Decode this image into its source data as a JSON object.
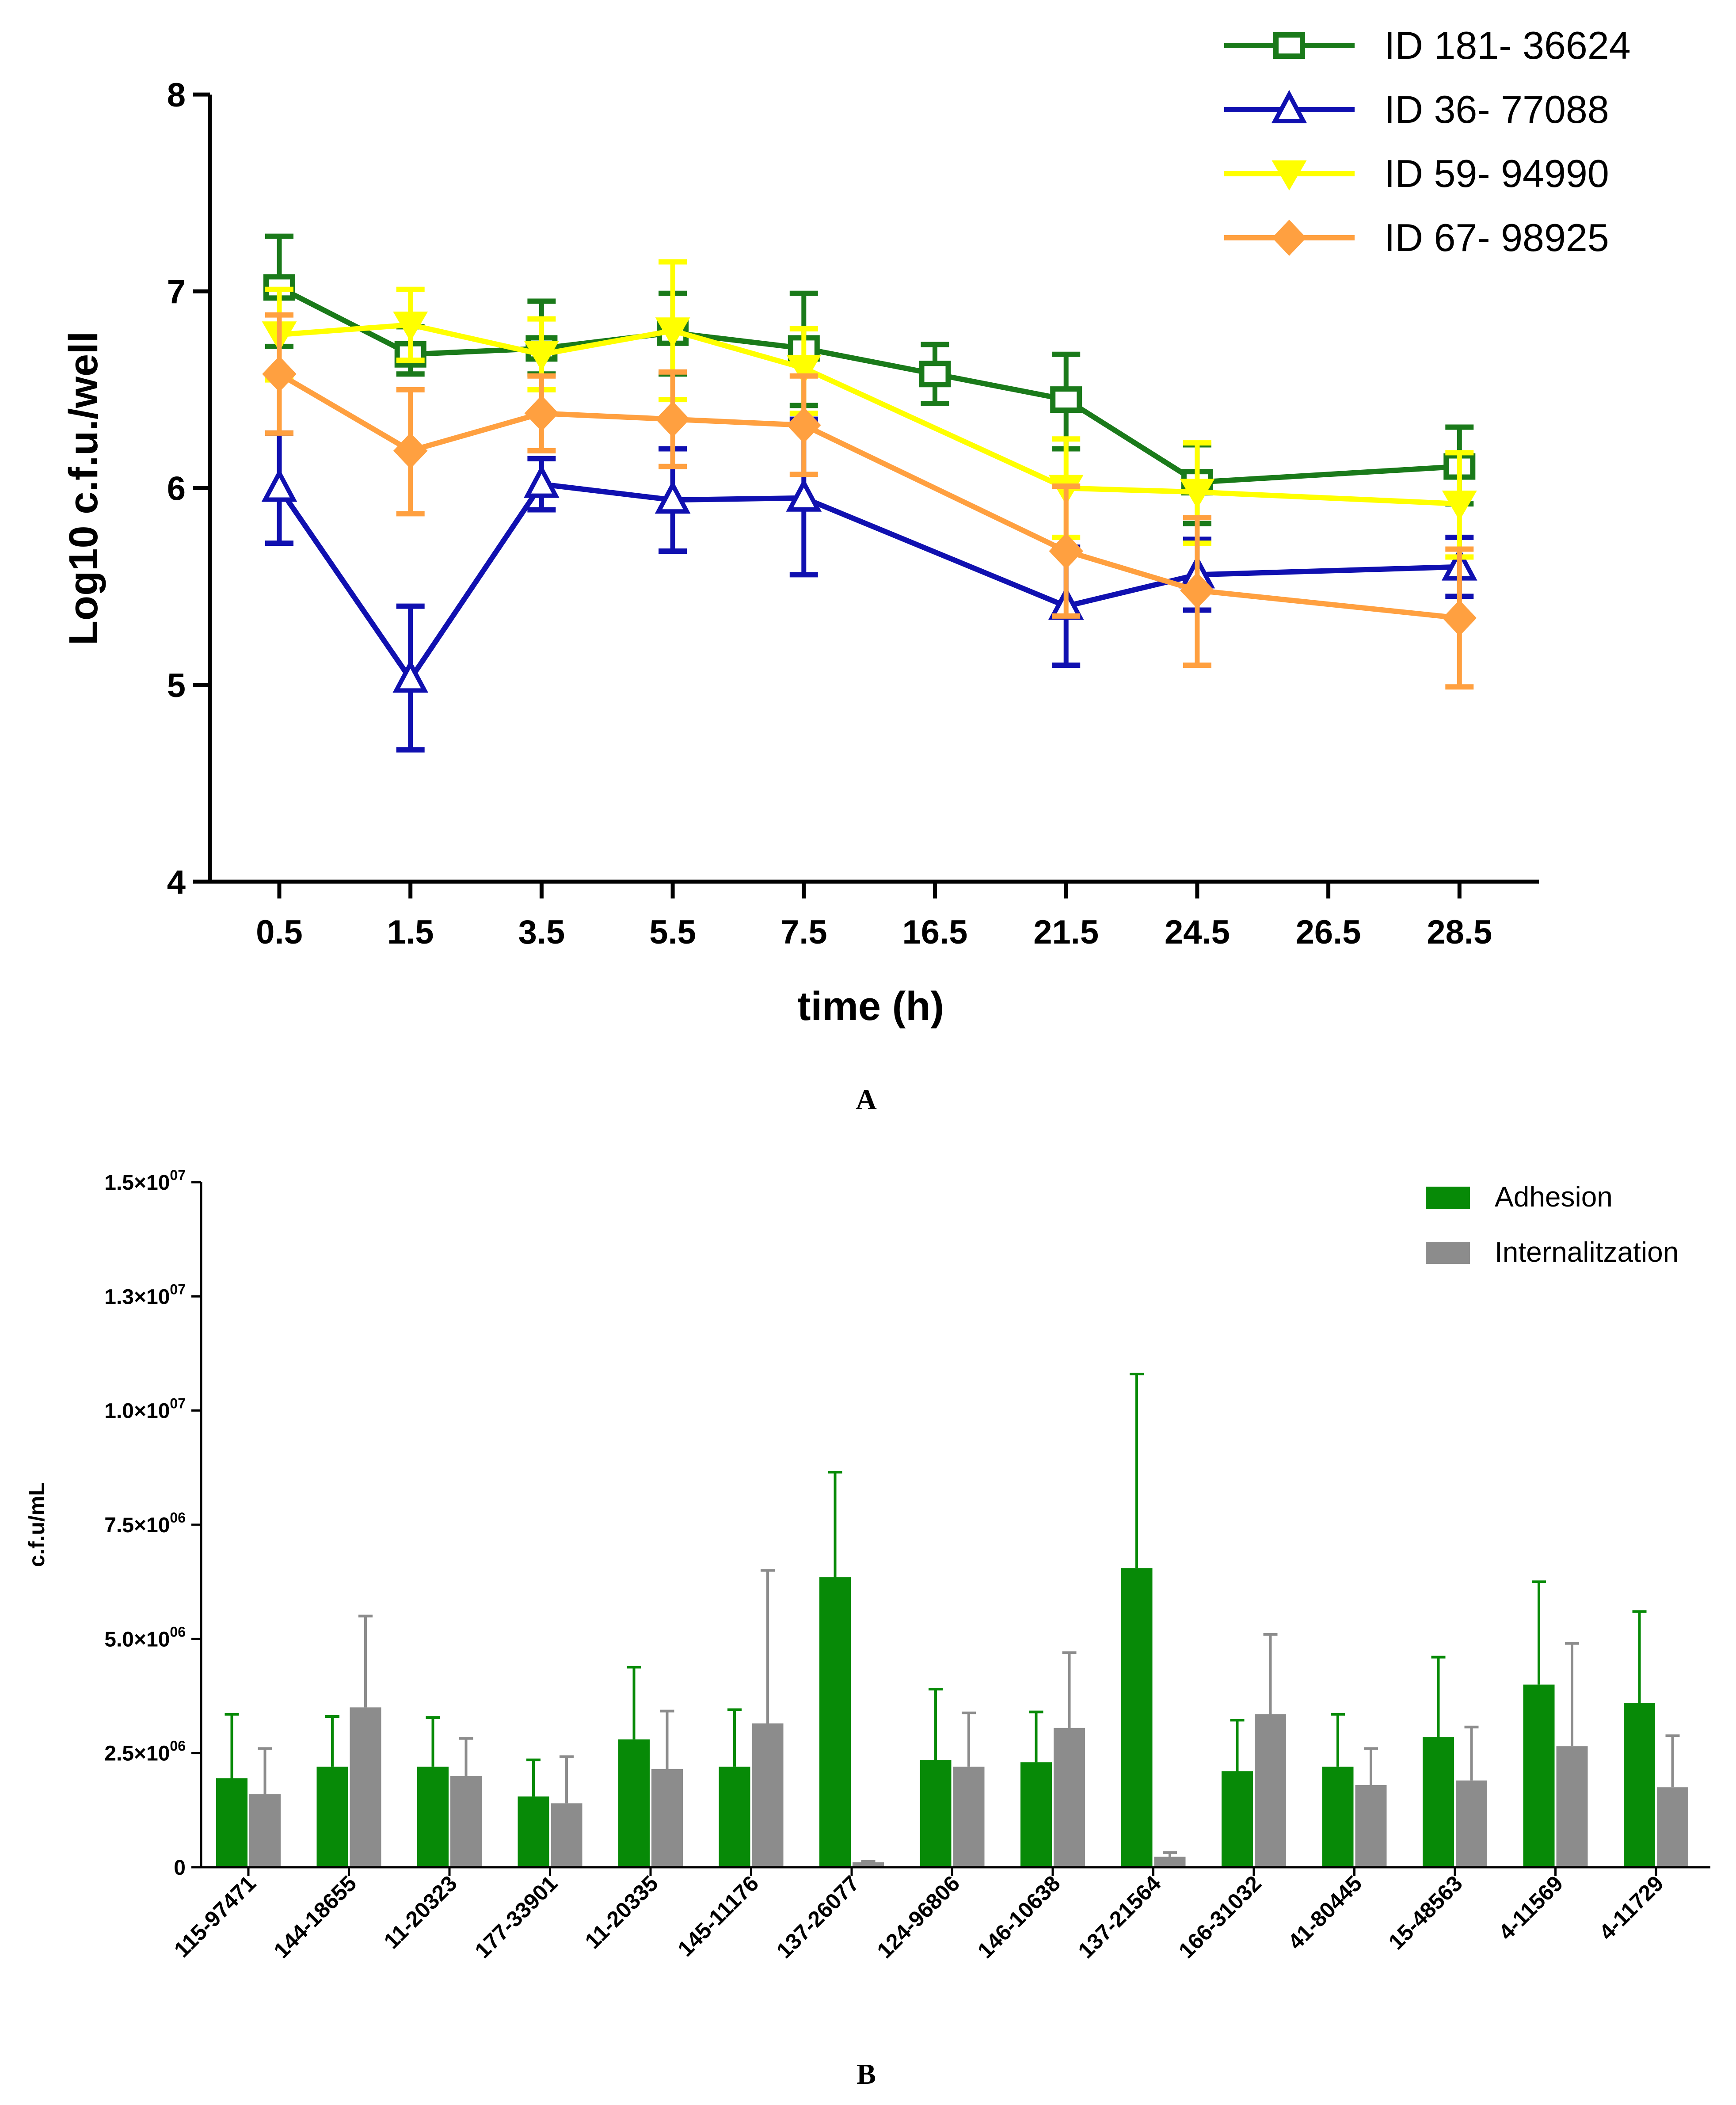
{
  "chart_data": [
    {
      "type": "line",
      "panel_label": "A",
      "xlabel": "time (h)",
      "ylabel": "Log10 c.f.u./well",
      "ylim": [
        4,
        8
      ],
      "yticks": [
        "4",
        "5",
        "6",
        "7",
        "8"
      ],
      "categories": [
        "0.5",
        "1.5",
        "3.5",
        "5.5",
        "7.5",
        "16.5",
        "21.5",
        "24.5",
        "26.5",
        "28.5"
      ],
      "series": [
        {
          "name": "ID 181- 36624",
          "color": "#1a7a1a",
          "marker": "square-open",
          "values": [
            7.02,
            6.68,
            6.71,
            6.79,
            6.71,
            6.58,
            6.45,
            6.03,
            null,
            6.11
          ],
          "err_low": [
            6.72,
            6.58,
            6.58,
            6.58,
            6.42,
            6.43,
            6.2,
            5.82,
            null,
            5.92
          ],
          "err_high": [
            7.28,
            6.82,
            6.95,
            6.99,
            6.99,
            6.73,
            6.68,
            6.22,
            null,
            6.31
          ]
        },
        {
          "name": "ID 36- 77088",
          "color": "#1010b0",
          "marker": "triangle-open",
          "values": [
            6.0,
            5.03,
            6.02,
            5.94,
            5.95,
            null,
            5.4,
            5.56,
            null,
            5.6
          ],
          "err_low": [
            5.72,
            4.67,
            5.89,
            5.68,
            5.56,
            null,
            5.1,
            5.38,
            null,
            5.45
          ],
          "err_high": [
            6.28,
            5.4,
            6.15,
            6.2,
            6.35,
            null,
            5.7,
            5.74,
            null,
            5.75
          ]
        },
        {
          "name": "ID 59- 94990",
          "color": "#ffff00",
          "marker": "triangle-down",
          "values": [
            6.78,
            6.83,
            6.68,
            6.8,
            6.61,
            null,
            6.0,
            5.98,
            null,
            5.92
          ],
          "err_low": [
            6.55,
            6.65,
            6.5,
            6.45,
            6.38,
            null,
            5.75,
            5.72,
            null,
            5.65
          ],
          "err_high": [
            7.01,
            7.01,
            6.86,
            7.15,
            6.81,
            null,
            6.25,
            6.23,
            null,
            6.18
          ]
        },
        {
          "name": "ID 67- 98925",
          "color": "#ffa040",
          "marker": "diamond",
          "values": [
            6.58,
            6.19,
            6.38,
            6.35,
            6.32,
            null,
            5.68,
            5.48,
            null,
            5.34
          ],
          "err_low": [
            6.28,
            5.87,
            6.19,
            6.11,
            6.07,
            null,
            5.35,
            5.1,
            null,
            4.99
          ],
          "err_high": [
            6.88,
            6.5,
            6.57,
            6.59,
            6.57,
            null,
            6.01,
            5.85,
            null,
            5.69
          ]
        }
      ]
    },
    {
      "type": "bar",
      "panel_label": "B",
      "xlabel": "",
      "ylabel": "c.f.u/mL",
      "ylim": [
        0,
        15000000
      ],
      "yticks": [
        {
          "value": 0,
          "mant": "0",
          "exp": ""
        },
        {
          "value": 2500000,
          "mant": "2.5×10",
          "exp": "06"
        },
        {
          "value": 5000000,
          "mant": "5.0×10",
          "exp": "06"
        },
        {
          "value": 7500000,
          "mant": "7.5×10",
          "exp": "06"
        },
        {
          "value": 10000000,
          "mant": "1.0×10",
          "exp": "07"
        },
        {
          "value": 12500000,
          "mant": "1.3×10",
          "exp": "07"
        },
        {
          "value": 15000000,
          "mant": "1.5×10",
          "exp": "07"
        }
      ],
      "categories": [
        "115-97471",
        "144-18655",
        "11-20323",
        "177-33901",
        "11-20335",
        "145-11176",
        "137-26077",
        "124-96806",
        "146-10638",
        "137-21564",
        "166-31032",
        "41-80445",
        "15-48563",
        "4-11569",
        "4-11729"
      ],
      "series": [
        {
          "name": "Adhesion",
          "color": "#078a07",
          "values": [
            1950000,
            2200000,
            2200000,
            1550000,
            2800000,
            2200000,
            6350000,
            2350000,
            2300000,
            6550000,
            2100000,
            2200000,
            2850000,
            4000000,
            3600000
          ],
          "err_high": [
            3350000,
            3300000,
            3280000,
            2350000,
            4380000,
            3450000,
            8650000,
            3900000,
            3400000,
            10800000,
            3220000,
            3350000,
            4600000,
            6250000,
            5600000
          ]
        },
        {
          "name": "Internalitzation",
          "color": "#8c8c8c",
          "values": [
            1600000,
            3500000,
            2000000,
            1400000,
            2150000,
            3150000,
            110000,
            2200000,
            3050000,
            230000,
            3350000,
            1800000,
            1900000,
            2650000,
            1750000
          ],
          "err_high": [
            2600000,
            5500000,
            2820000,
            2420000,
            3420000,
            6500000,
            130000,
            3380000,
            4700000,
            320000,
            5100000,
            2600000,
            3070000,
            4900000,
            2880000
          ]
        }
      ]
    }
  ]
}
